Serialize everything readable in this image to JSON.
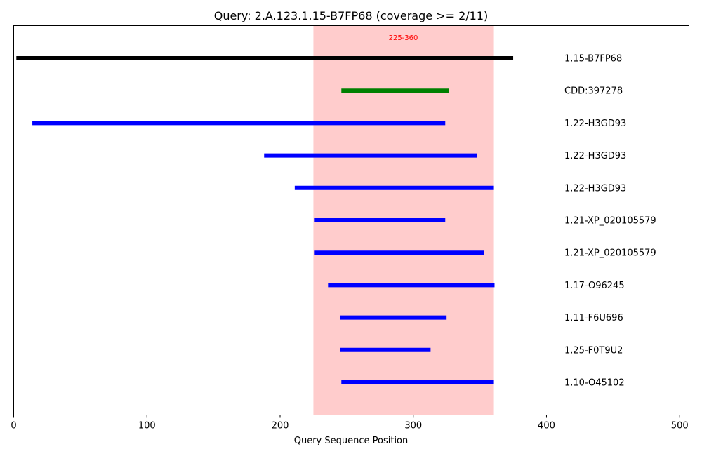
{
  "chart_data": {
    "type": "segment",
    "title": "Query: 2.A.123.1.15-B7FP68 (coverage >= 2/11)",
    "xlabel": "Query Sequence Position",
    "ylabel": "",
    "xlim": [
      0,
      507
    ],
    "xticks": [
      0,
      100,
      200,
      300,
      400,
      500
    ],
    "grid": false,
    "highlight_region": {
      "start": 225,
      "end": 360,
      "label": "225-360",
      "color": "#ff9999",
      "label_color": "#ff0000"
    },
    "segments": [
      {
        "label": "1.15-B7FP68",
        "start": 2,
        "end": 375,
        "color": "#000000"
      },
      {
        "label": "CDD:397278",
        "start": 246,
        "end": 327,
        "color": "#008000"
      },
      {
        "label": "1.22-H3GD93",
        "start": 14,
        "end": 324,
        "color": "#0000ff"
      },
      {
        "label": "1.22-H3GD93",
        "start": 188,
        "end": 348,
        "color": "#0000ff"
      },
      {
        "label": "1.22-H3GD93",
        "start": 211,
        "end": 360,
        "color": "#0000ff"
      },
      {
        "label": "1.21-XP_020105579",
        "start": 226,
        "end": 324,
        "color": "#0000ff"
      },
      {
        "label": "1.21-XP_020105579",
        "start": 226,
        "end": 353,
        "color": "#0000ff"
      },
      {
        "label": "1.17-O96245",
        "start": 236,
        "end": 361,
        "color": "#0000ff"
      },
      {
        "label": "1.11-F6U696",
        "start": 245,
        "end": 325,
        "color": "#0000ff"
      },
      {
        "label": "1.25-F0T9U2",
        "start": 245,
        "end": 313,
        "color": "#0000ff"
      },
      {
        "label": "1.10-O45102",
        "start": 246,
        "end": 360,
        "color": "#0000ff"
      }
    ]
  }
}
